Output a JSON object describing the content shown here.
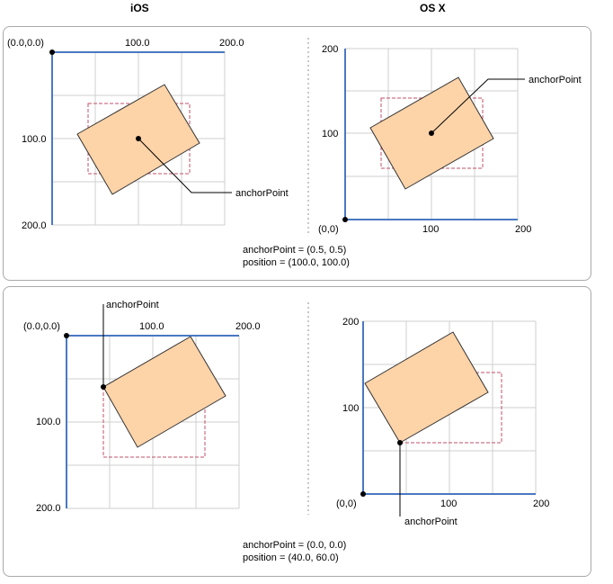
{
  "headers": {
    "ios": "iOS",
    "osx": "OS X"
  },
  "colors": {
    "axis": "#4a78c2",
    "grid": "#cfcfcf",
    "layer_fill": "#fdd3a8",
    "bounds_dash": "#c0506a",
    "separator": "#c8c8c8"
  },
  "panel1": {
    "ios": {
      "origin": "(0.0,0.0)",
      "x_mid": "100.0",
      "x_max": "200.0",
      "y_mid": "100.0",
      "y_max": "200.0",
      "callout": "anchorPoint"
    },
    "osx": {
      "y_max": "200",
      "y_mid": "100",
      "origin": "(0,0)",
      "x_mid": "100",
      "x_max": "200",
      "callout": "anchorPoint"
    },
    "caption_line1": "anchorPoint = (0.5, 0.5)",
    "caption_line2": "position = (100.0, 100.0)"
  },
  "panel2": {
    "ios": {
      "origin": "(0.0,0.0)",
      "x_mid": "100.0",
      "x_max": "200.0",
      "y_mid": "100.0",
      "y_max": "200.0",
      "callout": "anchorPoint"
    },
    "osx": {
      "y_max": "200",
      "y_mid": "100",
      "origin": "(0,0)",
      "x_mid": "100",
      "x_max": "200",
      "callout": "anchorPoint"
    },
    "caption_line1": "anchorPoint = (0.0, 0.0)",
    "caption_line2": "position = (40.0, 60.0)"
  }
}
